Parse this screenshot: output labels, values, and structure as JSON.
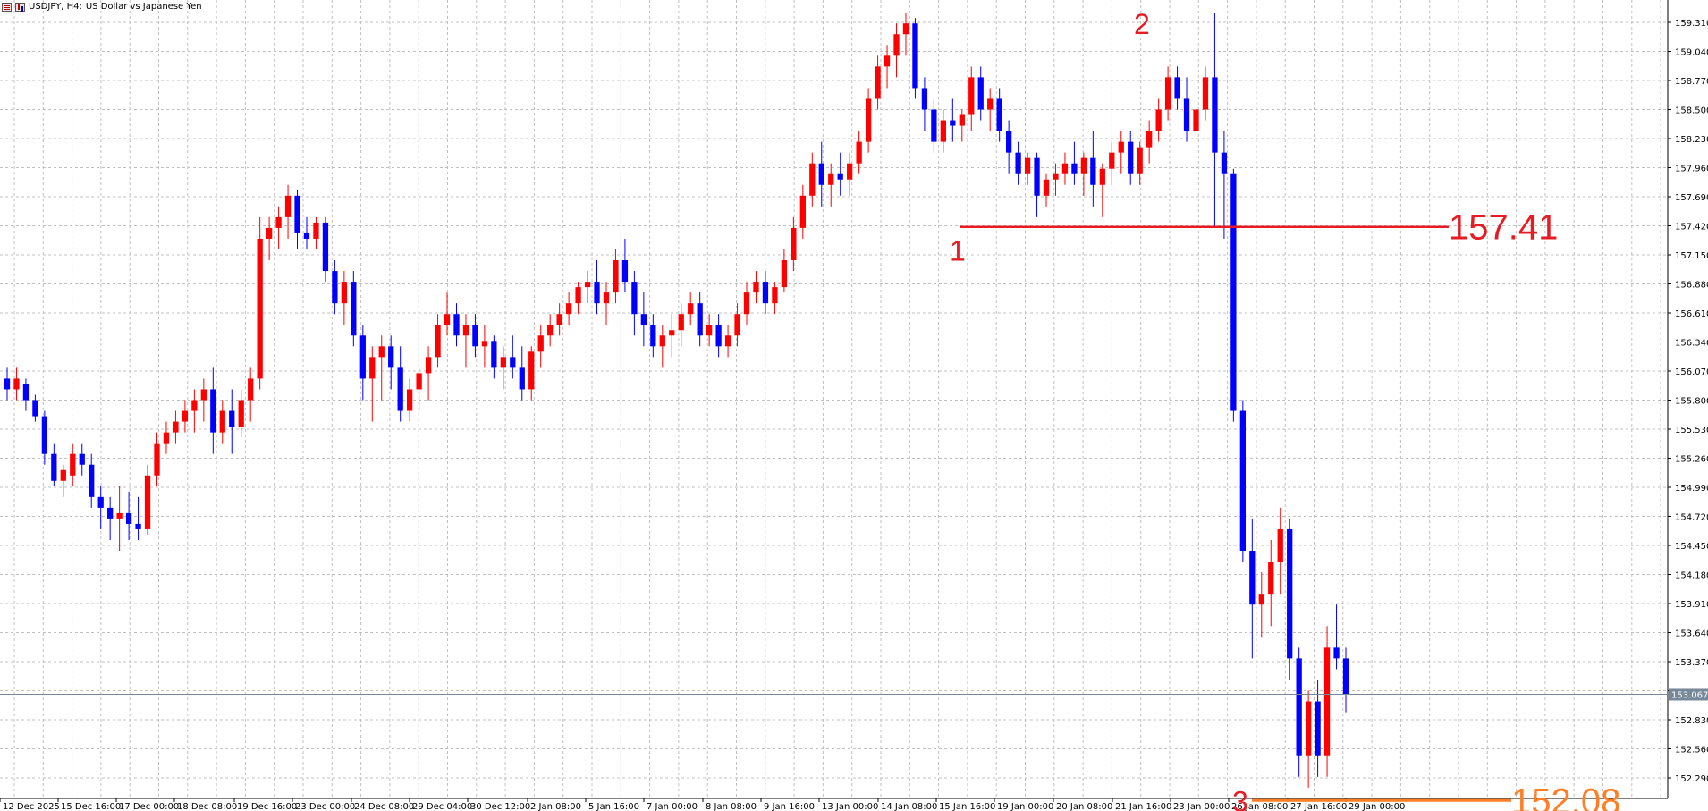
{
  "header": {
    "symbol": "USDJPY, H4:",
    "description": "US Dollar vs Japanese Yen"
  },
  "colors": {
    "bull": "#ff0000",
    "bear": "#0000ff",
    "grid": "#c0c0c0",
    "axis": "#000000",
    "annotation_red": "#e51c23",
    "annotation_orange": "#ff7f27",
    "bid_line": "#778899"
  },
  "chart_data": {
    "type": "candlestick",
    "symbol": "USDJPY",
    "timeframe": "H4",
    "y_ticks": [
      "159.310",
      "159.040",
      "158.770",
      "158.500",
      "158.230",
      "157.960",
      "157.690",
      "157.420",
      "157.150",
      "156.880",
      "156.610",
      "156.340",
      "156.070",
      "155.800",
      "155.530",
      "155.260",
      "154.990",
      "154.720",
      "154.450",
      "154.180",
      "153.910",
      "153.640",
      "153.370",
      "153.100",
      "152.830",
      "152.560",
      "152.290"
    ],
    "x_ticks": [
      "12 Dec 2025",
      "15 Dec 16:00",
      "17 Dec 00:00",
      "18 Dec 08:00",
      "19 Dec 16:00",
      "23 Dec 00:00",
      "24 Dec 08:00",
      "29 Dec 04:00",
      "30 Dec 12:00",
      "2 Jan 08:00",
      "5 Jan 16:00",
      "7 Jan 00:00",
      "8 Jan 08:00",
      "9 Jan 16:00",
      "13 Jan 00:00",
      "14 Jan 08:00",
      "15 Jan 16:00",
      "19 Jan 00:00",
      "20 Jan 08:00",
      "21 Jan 16:00",
      "23 Jan 00:00",
      "26 Jan 08:00",
      "27 Jan 16:00",
      "29 Jan 00:00"
    ],
    "current_price": "153.067",
    "ohlc": [
      [
        156.0,
        156.1,
        155.8,
        155.9
      ],
      [
        155.9,
        156.1,
        155.8,
        156.0
      ],
      [
        155.95,
        156.0,
        155.7,
        155.8
      ],
      [
        155.8,
        155.85,
        155.6,
        155.65
      ],
      [
        155.65,
        155.7,
        155.2,
        155.3
      ],
      [
        155.3,
        155.4,
        155.0,
        155.05
      ],
      [
        155.05,
        155.2,
        154.9,
        155.15
      ],
      [
        155.1,
        155.4,
        155.0,
        155.3
      ],
      [
        155.3,
        155.4,
        155.1,
        155.2
      ],
      [
        155.2,
        155.3,
        154.8,
        154.9
      ],
      [
        154.9,
        155.0,
        154.6,
        154.8
      ],
      [
        154.8,
        154.9,
        154.5,
        154.7
      ],
      [
        154.7,
        155.0,
        154.4,
        154.75
      ],
      [
        154.75,
        154.95,
        154.5,
        154.65
      ],
      [
        154.65,
        154.9,
        154.5,
        154.6
      ],
      [
        154.6,
        155.2,
        154.55,
        155.1
      ],
      [
        155.1,
        155.5,
        155.0,
        155.4
      ],
      [
        155.4,
        155.6,
        155.3,
        155.5
      ],
      [
        155.5,
        155.7,
        155.4,
        155.6
      ],
      [
        155.6,
        155.8,
        155.5,
        155.7
      ],
      [
        155.7,
        155.9,
        155.5,
        155.8
      ],
      [
        155.8,
        156.0,
        155.6,
        155.9
      ],
      [
        155.9,
        156.1,
        155.3,
        155.5
      ],
      [
        155.5,
        155.8,
        155.4,
        155.7
      ],
      [
        155.7,
        155.9,
        155.3,
        155.55
      ],
      [
        155.55,
        155.9,
        155.45,
        155.8
      ],
      [
        155.8,
        156.1,
        155.6,
        156.0
      ],
      [
        156.0,
        157.5,
        155.9,
        157.3
      ],
      [
        157.3,
        157.5,
        157.1,
        157.4
      ],
      [
        157.4,
        157.6,
        157.2,
        157.5
      ],
      [
        157.5,
        157.8,
        157.3,
        157.7
      ],
      [
        157.7,
        157.75,
        157.2,
        157.35
      ],
      [
        157.35,
        157.5,
        157.2,
        157.3
      ],
      [
        157.3,
        157.5,
        157.2,
        157.45
      ],
      [
        157.45,
        157.5,
        156.9,
        157.0
      ],
      [
        157.0,
        157.1,
        156.6,
        156.7
      ],
      [
        156.7,
        157.0,
        156.5,
        156.9
      ],
      [
        156.9,
        157.0,
        156.3,
        156.4
      ],
      [
        156.4,
        156.5,
        155.8,
        156.0
      ],
      [
        156.0,
        156.3,
        155.6,
        156.2
      ],
      [
        156.2,
        156.4,
        155.8,
        156.3
      ],
      [
        156.3,
        156.4,
        155.9,
        156.1
      ],
      [
        156.1,
        156.3,
        155.6,
        155.7
      ],
      [
        155.7,
        156.0,
        155.6,
        155.9
      ],
      [
        155.9,
        156.1,
        155.7,
        156.05
      ],
      [
        156.05,
        156.3,
        155.8,
        156.2
      ],
      [
        156.2,
        156.6,
        156.1,
        156.5
      ],
      [
        156.5,
        156.8,
        156.4,
        156.6
      ],
      [
        156.6,
        156.7,
        156.3,
        156.4
      ],
      [
        156.4,
        156.6,
        156.1,
        156.5
      ],
      [
        156.5,
        156.6,
        156.2,
        156.3
      ],
      [
        156.3,
        156.5,
        156.1,
        156.35
      ],
      [
        156.35,
        156.4,
        156.0,
        156.1
      ],
      [
        156.1,
        156.3,
        155.9,
        156.2
      ],
      [
        156.2,
        156.4,
        156.0,
        156.1
      ],
      [
        156.1,
        156.3,
        155.8,
        155.9
      ],
      [
        155.9,
        156.3,
        155.8,
        156.25
      ],
      [
        156.25,
        156.5,
        156.1,
        156.4
      ],
      [
        156.4,
        156.6,
        156.3,
        156.5
      ],
      [
        156.5,
        156.7,
        156.4,
        156.6
      ],
      [
        156.6,
        156.8,
        156.5,
        156.7
      ],
      [
        156.7,
        156.9,
        156.6,
        156.85
      ],
      [
        156.85,
        157.0,
        156.7,
        156.9
      ],
      [
        156.9,
        157.1,
        156.6,
        156.7
      ],
      [
        156.7,
        156.9,
        156.5,
        156.8
      ],
      [
        156.8,
        157.2,
        156.7,
        157.1
      ],
      [
        157.1,
        157.3,
        156.8,
        156.9
      ],
      [
        156.9,
        157.0,
        156.4,
        156.6
      ],
      [
        156.6,
        156.8,
        156.3,
        156.5
      ],
      [
        156.5,
        156.6,
        156.2,
        156.3
      ],
      [
        156.3,
        156.5,
        156.1,
        156.4
      ],
      [
        156.4,
        156.6,
        156.2,
        156.45
      ],
      [
        156.45,
        156.7,
        156.3,
        156.6
      ],
      [
        156.6,
        156.8,
        156.5,
        156.7
      ],
      [
        156.7,
        156.8,
        156.3,
        156.4
      ],
      [
        156.4,
        156.6,
        156.3,
        156.5
      ],
      [
        156.5,
        156.6,
        156.2,
        156.3
      ],
      [
        156.3,
        156.5,
        156.2,
        156.4
      ],
      [
        156.4,
        156.7,
        156.3,
        156.6
      ],
      [
        156.6,
        156.9,
        156.5,
        156.8
      ],
      [
        156.8,
        157.0,
        156.7,
        156.9
      ],
      [
        156.9,
        157.0,
        156.6,
        156.7
      ],
      [
        156.7,
        156.9,
        156.6,
        156.85
      ],
      [
        156.85,
        157.2,
        156.8,
        157.1
      ],
      [
        157.1,
        157.5,
        157.0,
        157.4
      ],
      [
        157.4,
        157.8,
        157.3,
        157.7
      ],
      [
        157.7,
        158.1,
        157.6,
        158.0
      ],
      [
        158.0,
        158.2,
        157.6,
        157.8
      ],
      [
        157.8,
        158.0,
        157.6,
        157.9
      ],
      [
        157.9,
        158.1,
        157.7,
        157.85
      ],
      [
        157.85,
        158.1,
        157.7,
        158.0
      ],
      [
        158.0,
        158.3,
        157.9,
        158.2
      ],
      [
        158.2,
        158.7,
        158.1,
        158.6
      ],
      [
        158.6,
        159.0,
        158.5,
        158.9
      ],
      [
        158.9,
        159.1,
        158.7,
        159.0
      ],
      [
        159.0,
        159.3,
        158.8,
        159.2
      ],
      [
        159.2,
        159.4,
        159.0,
        159.3
      ],
      [
        159.3,
        159.35,
        158.6,
        158.7
      ],
      [
        158.7,
        158.8,
        158.3,
        158.5
      ],
      [
        158.5,
        158.6,
        158.1,
        158.2
      ],
      [
        158.2,
        158.5,
        158.1,
        158.4
      ],
      [
        158.4,
        158.6,
        158.2,
        158.35
      ],
      [
        158.35,
        158.5,
        158.2,
        158.45
      ],
      [
        158.45,
        158.9,
        158.3,
        158.8
      ],
      [
        158.8,
        158.9,
        158.4,
        158.5
      ],
      [
        158.5,
        158.7,
        158.3,
        158.6
      ],
      [
        158.6,
        158.7,
        158.2,
        158.3
      ],
      [
        158.3,
        158.4,
        157.9,
        158.1
      ],
      [
        158.1,
        158.2,
        157.8,
        157.9
      ],
      [
        157.9,
        158.1,
        157.8,
        158.05
      ],
      [
        158.05,
        158.1,
        157.5,
        157.7
      ],
      [
        157.7,
        157.9,
        157.6,
        157.85
      ],
      [
        157.85,
        158.0,
        157.7,
        157.9
      ],
      [
        157.9,
        158.1,
        157.8,
        158.0
      ],
      [
        158.0,
        158.2,
        157.8,
        157.9
      ],
      [
        157.9,
        158.1,
        157.7,
        158.05
      ],
      [
        158.05,
        158.3,
        157.6,
        157.8
      ],
      [
        157.8,
        158.0,
        157.5,
        157.95
      ],
      [
        157.95,
        158.2,
        157.8,
        158.1
      ],
      [
        158.1,
        158.3,
        157.9,
        158.2
      ],
      [
        158.2,
        158.3,
        157.8,
        157.9
      ],
      [
        157.9,
        158.2,
        157.8,
        158.15
      ],
      [
        158.15,
        158.4,
        158.0,
        158.3
      ],
      [
        158.3,
        158.6,
        158.2,
        158.5
      ],
      [
        158.5,
        158.9,
        158.4,
        158.8
      ],
      [
        158.8,
        158.9,
        158.5,
        158.6
      ],
      [
        158.6,
        158.8,
        158.2,
        158.3
      ],
      [
        158.3,
        158.6,
        158.2,
        158.5
      ],
      [
        158.5,
        158.9,
        158.4,
        158.8
      ],
      [
        158.8,
        159.4,
        157.4,
        158.1
      ],
      [
        158.1,
        158.3,
        157.3,
        157.9
      ],
      [
        157.9,
        157.95,
        155.6,
        155.7
      ],
      [
        155.7,
        155.8,
        154.3,
        154.4
      ],
      [
        154.4,
        154.7,
        153.4,
        153.9
      ],
      [
        153.9,
        154.2,
        153.6,
        154.0
      ],
      [
        154.0,
        154.5,
        153.7,
        154.3
      ],
      [
        154.3,
        154.8,
        154.0,
        154.6
      ],
      [
        154.6,
        154.7,
        153.2,
        153.4
      ],
      [
        153.4,
        153.5,
        152.3,
        152.5
      ],
      [
        152.5,
        153.1,
        152.2,
        153.0
      ],
      [
        153.0,
        153.2,
        152.3,
        152.5
      ],
      [
        152.5,
        153.7,
        152.3,
        153.5
      ],
      [
        153.5,
        153.9,
        153.3,
        153.4
      ],
      [
        153.4,
        153.5,
        152.9,
        153.067
      ]
    ],
    "annotations": [
      {
        "label": "1",
        "price": "157.41",
        "color": "red"
      },
      {
        "label": "2",
        "color": "red"
      },
      {
        "label": "3",
        "price": "152.08",
        "color": "orange"
      }
    ]
  }
}
